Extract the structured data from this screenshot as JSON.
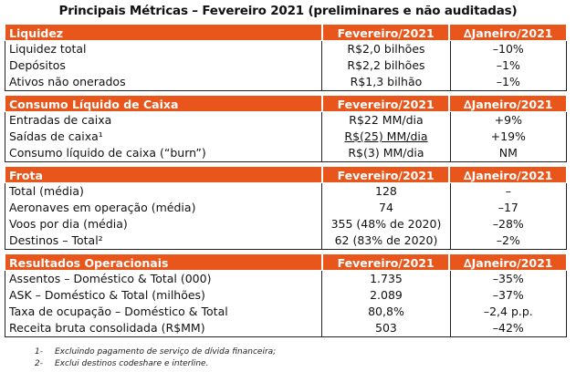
{
  "title": "Principais Métricas – Fevereiro 2021 (preliminares e não auditadas)",
  "sections": [
    {
      "header": [
        "Liquidez",
        "Fevereiro/2021",
        "∆Janeiro/2021"
      ],
      "rows": [
        [
          "Liquidez total",
          "R$2,0 bilhões",
          "–10%"
        ],
        [
          "Depósitos",
          "R$2,2 bilhões",
          "–1%"
        ],
        [
          "Ativos não onerados",
          "R$1,3 bilhão",
          "–1%"
        ]
      ]
    },
    {
      "header": [
        "Consumo Líquido de Caixa",
        "Fevereiro/2021",
        "∆Janeiro/2021"
      ],
      "rows": [
        [
          "Entradas de caixa",
          "R$22 MM/dia",
          "+9%"
        ],
        [
          "Saídas de caixa¹",
          "R$(25) MM/dia",
          "+19%"
        ],
        [
          "Consumo líquido de caixa (“burn”)",
          "R$(3) MM/dia",
          "NM"
        ]
      ]
    },
    {
      "header": [
        "Frota",
        "Fevereiro/2021",
        "∆Janeiro/2021"
      ],
      "rows": [
        [
          "Total (média)",
          "128",
          "–"
        ],
        [
          "Aeronaves em operação (média)",
          "74",
          "–17"
        ],
        [
          "Voos por dia (média)",
          "355 (48% de 2020)",
          "–28%"
        ],
        [
          "Destinos – Total²",
          "62 (83% de 2020)",
          "–2%"
        ]
      ]
    },
    {
      "header": [
        "Resultados Operacionais",
        "Fevereiro/2021",
        "∆Janeiro/2021"
      ],
      "rows": [
        [
          "Assentos – Doméstico & Total (000)",
          "1.735",
          "–35%"
        ],
        [
          "ASK – Doméstico & Total (milhões)",
          "2.089",
          "–37%"
        ],
        [
          "Taxa de ocupação – Doméstico & Total",
          "80,8%",
          "–2,4 p.p."
        ],
        [
          "Receita bruta consolidada (R$MM)",
          "503",
          "–42%"
        ]
      ]
    }
  ],
  "footnotes": [
    [
      "1-",
      "Excluindo pagamento de serviço de dívida financeira;"
    ],
    [
      "2-",
      "Exclui destinos codeshare e interline."
    ]
  ],
  "colors": {
    "header_bg": "#e8561c",
    "header_text": "#ffffff"
  }
}
